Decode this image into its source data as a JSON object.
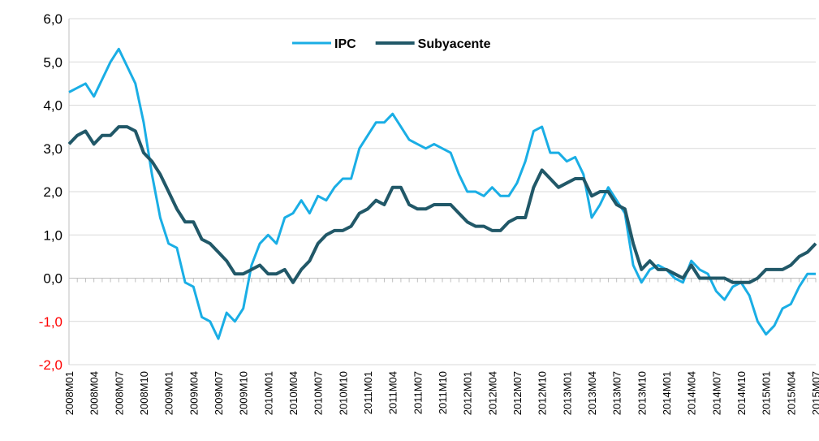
{
  "chart_data": {
    "type": "line",
    "categories": [
      "2008M01",
      null,
      null,
      "2008M04",
      null,
      null,
      "2008M07",
      null,
      null,
      "2008M10",
      null,
      null,
      "2009M01",
      null,
      null,
      "2009M04",
      null,
      null,
      "2009M07",
      null,
      null,
      "2009M10",
      null,
      null,
      "2010M01",
      null,
      null,
      "2010M04",
      null,
      null,
      "2010M07",
      null,
      null,
      "2010M10",
      null,
      null,
      "2011M01",
      null,
      null,
      "2011M04",
      null,
      null,
      "2011M07",
      null,
      null,
      "2011M10",
      null,
      null,
      "2012M01",
      null,
      null,
      "2012M04",
      null,
      null,
      "2012M07",
      null,
      null,
      "2012M10",
      null,
      null,
      "2013M01",
      null,
      null,
      "2013M04",
      null,
      null,
      "2013M07",
      null,
      null,
      "2013M10",
      null,
      null,
      "2014M01",
      null,
      null,
      "2014M04",
      null,
      null,
      "2014M07",
      null,
      null,
      "2014M10",
      null,
      null,
      "2015M01",
      null,
      null,
      "2015M04",
      null,
      null,
      "2015M07"
    ],
    "series": [
      {
        "name": "IPC",
        "color": "#1aaee5",
        "values": [
          4.3,
          4.4,
          4.5,
          4.2,
          4.6,
          5.0,
          5.3,
          4.9,
          4.5,
          3.6,
          2.4,
          1.4,
          0.8,
          0.7,
          -0.1,
          -0.2,
          -0.9,
          -1.0,
          -1.4,
          -0.8,
          -1.0,
          -0.7,
          0.3,
          0.8,
          1.0,
          0.8,
          1.4,
          1.5,
          1.8,
          1.5,
          1.9,
          1.8,
          2.1,
          2.3,
          2.3,
          3.0,
          3.3,
          3.6,
          3.6,
          3.8,
          3.5,
          3.2,
          3.1,
          3.0,
          3.1,
          3.0,
          2.9,
          2.4,
          2.0,
          2.0,
          1.9,
          2.1,
          1.9,
          1.9,
          2.2,
          2.7,
          3.4,
          3.5,
          2.9,
          2.9,
          2.7,
          2.8,
          2.4,
          1.4,
          1.7,
          2.1,
          1.8,
          1.5,
          0.3,
          -0.1,
          0.2,
          0.3,
          0.2,
          0.0,
          -0.1,
          0.4,
          0.2,
          0.1,
          -0.3,
          -0.5,
          -0.2,
          -0.1,
          -0.4,
          -1.0,
          -1.3,
          -1.1,
          -0.7,
          -0.6,
          -0.2,
          0.1,
          0.1
        ]
      },
      {
        "name": "Subyacente",
        "color": "#215868",
        "values": [
          3.1,
          3.3,
          3.4,
          3.1,
          3.3,
          3.3,
          3.5,
          3.5,
          3.4,
          2.9,
          2.7,
          2.4,
          2.0,
          1.6,
          1.3,
          1.3,
          0.9,
          0.8,
          0.6,
          0.4,
          0.1,
          0.1,
          0.2,
          0.3,
          0.1,
          0.1,
          0.2,
          -0.1,
          0.2,
          0.4,
          0.8,
          1.0,
          1.1,
          1.1,
          1.2,
          1.5,
          1.6,
          1.8,
          1.7,
          2.1,
          2.1,
          1.7,
          1.6,
          1.6,
          1.7,
          1.7,
          1.7,
          1.5,
          1.3,
          1.2,
          1.2,
          1.1,
          1.1,
          1.3,
          1.4,
          1.4,
          2.1,
          2.5,
          2.3,
          2.1,
          2.2,
          2.3,
          2.3,
          1.9,
          2.0,
          2.0,
          1.7,
          1.6,
          0.8,
          0.2,
          0.4,
          0.2,
          0.2,
          0.1,
          0.0,
          0.3,
          0.0,
          0.0,
          0.0,
          0.0,
          -0.1,
          -0.1,
          -0.1,
          0.0,
          0.2,
          0.2,
          0.2,
          0.3,
          0.5,
          0.6,
          0.8
        ]
      }
    ],
    "ylim": [
      -2,
      6
    ],
    "yticks": [
      {
        "value": -2,
        "label": "-2,0"
      },
      {
        "value": -1,
        "label": "-1,0"
      },
      {
        "value": 0,
        "label": "0,0"
      },
      {
        "value": 1,
        "label": "1,0"
      },
      {
        "value": 2,
        "label": "2,0"
      },
      {
        "value": 3,
        "label": "3,0"
      },
      {
        "value": 4,
        "label": "4,0"
      },
      {
        "value": 5,
        "label": "5,0"
      },
      {
        "value": 6,
        "label": "6,0"
      }
    ],
    "negative_tick_color": "#ff0000",
    "grid": true,
    "legend": "top"
  }
}
